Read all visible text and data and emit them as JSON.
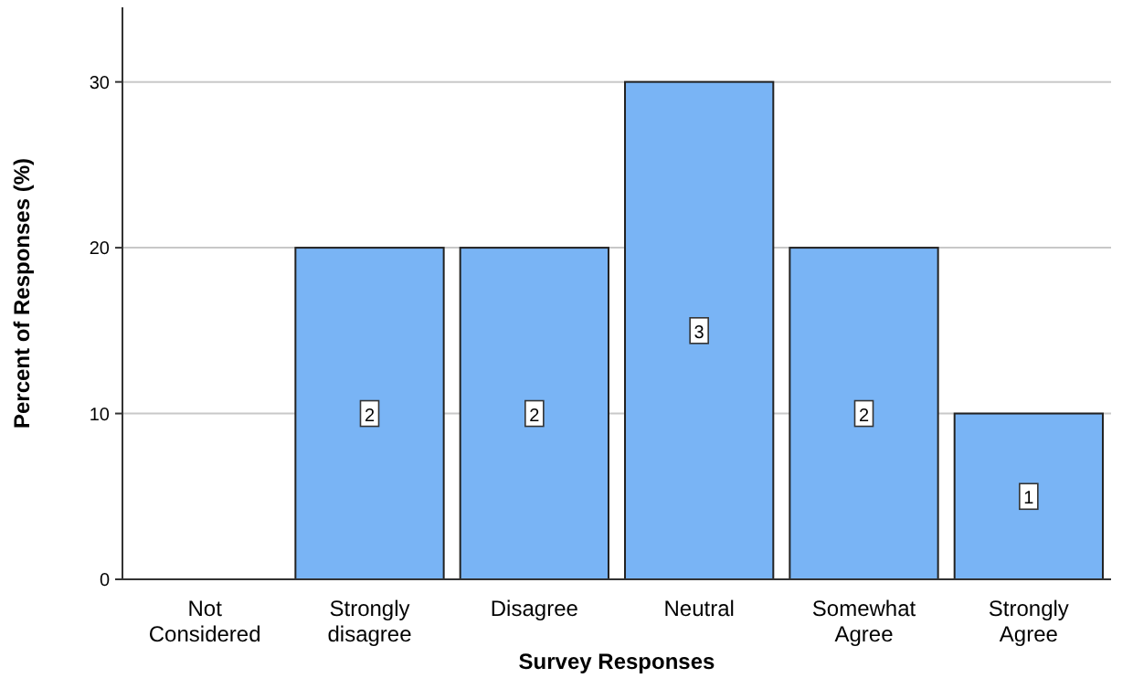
{
  "chart_data": {
    "type": "bar",
    "xlabel": "Survey Responses",
    "ylabel": "Percent of Responses (%)",
    "categories": [
      "Not Considered",
      "Strongly disagree",
      "Disagree",
      "Neutral",
      "Somewhat Agree",
      "Strongly Agree"
    ],
    "values": [
      0,
      20,
      20,
      30,
      20,
      10
    ],
    "annotations": [
      {
        "text": "2",
        "x": "Strongly disagree",
        "y": 10
      },
      {
        "text": "2",
        "x": "Disagree",
        "y": 10
      },
      {
        "text": "3",
        "x": "Neutral",
        "y": 15
      },
      {
        "text": "2",
        "x": "Somewhat Agree",
        "y": 10
      },
      {
        "text": "1",
        "x": "Strongly Agree",
        "y": 5
      }
    ],
    "color": "#79b4f5",
    "ylim": [
      0,
      34.5
    ],
    "yticks": [
      0,
      10,
      20,
      30
    ],
    "grid": "y"
  }
}
